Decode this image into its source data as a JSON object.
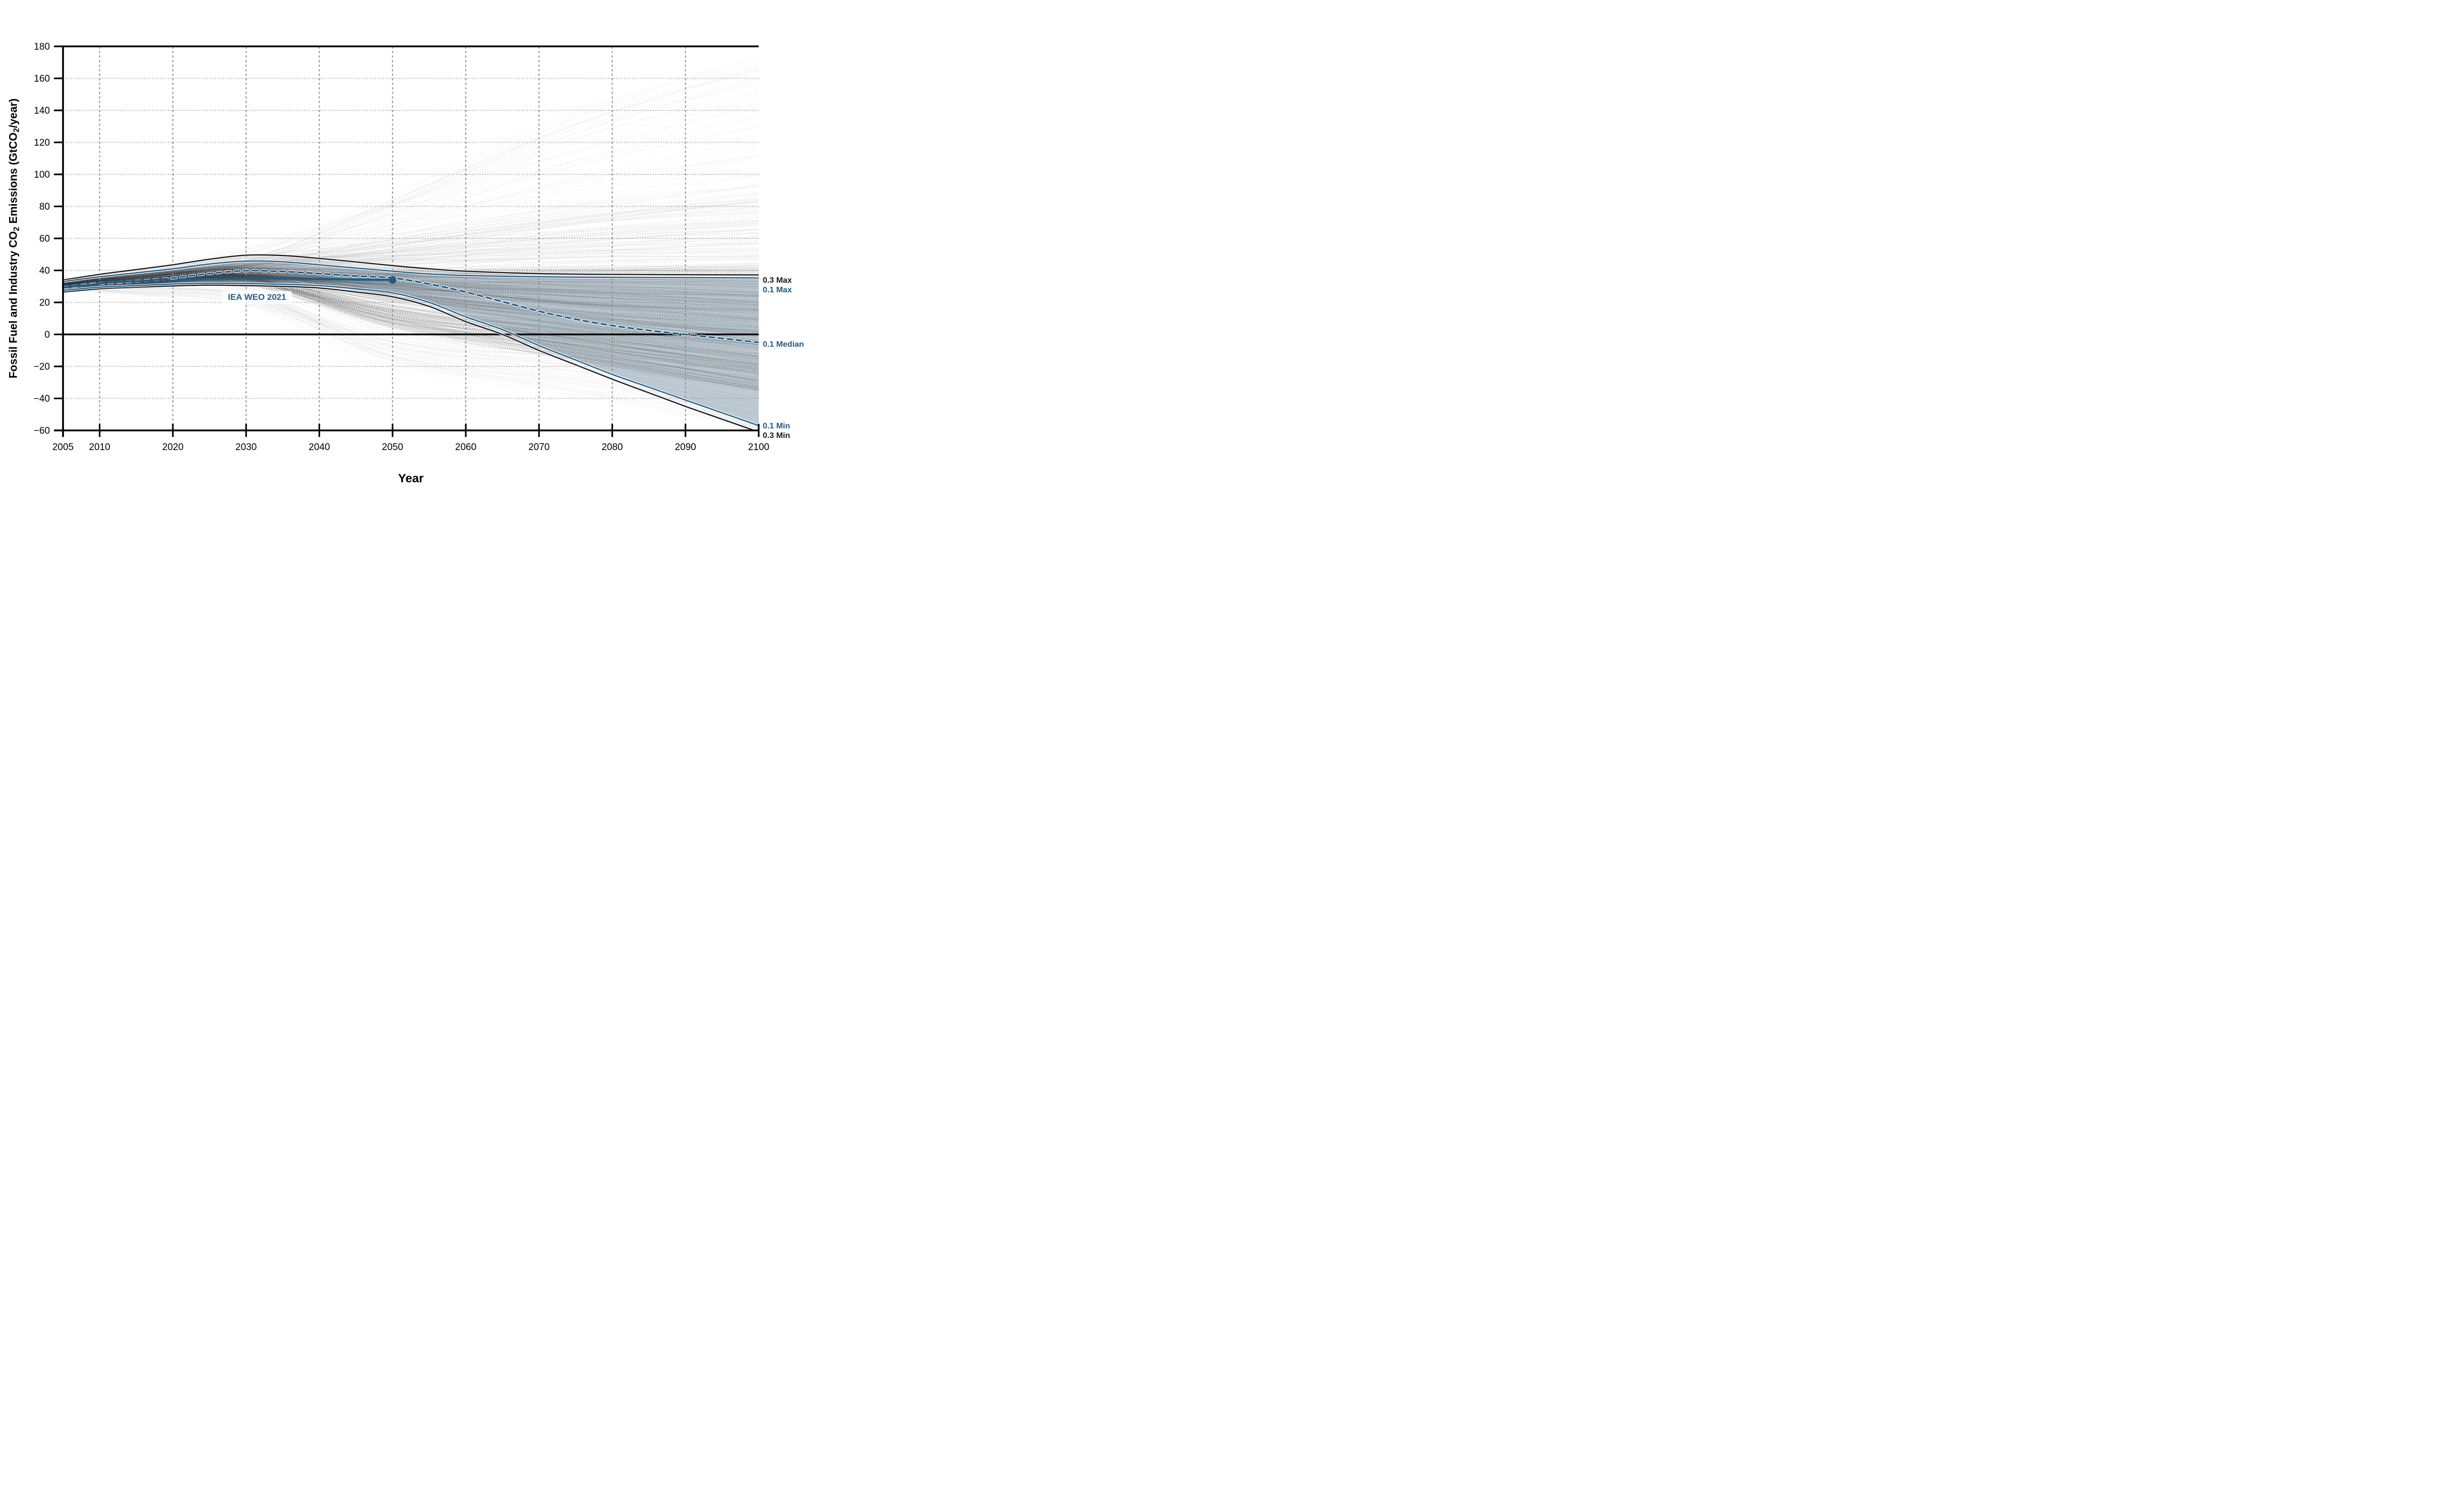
{
  "chart_data": {
    "type": "line",
    "title": "",
    "xlabel": "Year",
    "ylabel": "Fossil Fuel and Industry CO2 Emissions (GtCO2/year)",
    "ylabel_parts": [
      {
        "t": "Fossil Fuel and Industry CO"
      },
      {
        "t": "2",
        "sub": true
      },
      {
        "t": " Emissions (GtCO"
      },
      {
        "t": "2",
        "sub": true
      },
      {
        "t": "/year)"
      }
    ],
    "xlim": [
      2005,
      2100
    ],
    "ylim": [
      -60,
      180
    ],
    "grid": true,
    "x_ticks": [
      {
        "v": 2005,
        "label": "2005"
      },
      {
        "v": 2010,
        "label": "2010"
      },
      {
        "v": 2020,
        "label": "2020"
      },
      {
        "v": 2030,
        "label": "2030"
      },
      {
        "v": 2040,
        "label": "2040"
      },
      {
        "v": 2050,
        "label": "2050"
      },
      {
        "v": 2060,
        "label": "2060"
      },
      {
        "v": 2070,
        "label": "2070"
      },
      {
        "v": 2080,
        "label": "2080"
      },
      {
        "v": 2090,
        "label": "2090"
      },
      {
        "v": 2100,
        "label": "2100"
      }
    ],
    "y_ticks": [
      {
        "v": 180,
        "label": "180"
      },
      {
        "v": 160,
        "label": "160"
      },
      {
        "v": 140,
        "label": "140"
      },
      {
        "v": 120,
        "label": "120"
      },
      {
        "v": 100,
        "label": "100"
      },
      {
        "v": 80,
        "label": "80"
      },
      {
        "v": 60,
        "label": "60"
      },
      {
        "v": 40,
        "label": "40"
      },
      {
        "v": 20,
        "label": "20"
      },
      {
        "v": 0,
        "label": "0"
      },
      {
        "v": -20,
        "label": "−20"
      },
      {
        "v": -40,
        "label": "−40"
      },
      {
        "v": -60,
        "label": "−60"
      }
    ],
    "grid_x": [
      2010,
      2020,
      2030,
      2040,
      2050,
      2060,
      2070,
      2080,
      2090
    ],
    "grid_y": [
      -40,
      -20,
      20,
      40,
      60,
      80,
      100,
      120,
      140,
      160
    ],
    "colors": {
      "blue": "#1f5d88",
      "dark": "#1a1a1a",
      "band_01_fill": "rgba(93,127,153,0.35)",
      "band_03_fill": "rgba(110,110,110,0.08)",
      "zero_line": "#000000",
      "grid": "#8c8c8c"
    },
    "series": [
      {
        "name": "0.3 Max",
        "style": "envelope-dark",
        "points": [
          [
            2005,
            34
          ],
          [
            2010,
            37.5
          ],
          [
            2015,
            40.5
          ],
          [
            2020,
            43.5
          ],
          [
            2025,
            47
          ],
          [
            2030,
            49.5
          ],
          [
            2035,
            49.3
          ],
          [
            2040,
            47.5
          ],
          [
            2045,
            45.3
          ],
          [
            2050,
            43
          ],
          [
            2055,
            41
          ],
          [
            2060,
            39.5
          ],
          [
            2070,
            38
          ],
          [
            2080,
            37.5
          ],
          [
            2090,
            37.3
          ],
          [
            2100,
            37.2
          ]
        ]
      },
      {
        "name": "0.1 Max",
        "style": "envelope-blue",
        "points": [
          [
            2005,
            33
          ],
          [
            2010,
            36
          ],
          [
            2015,
            38.5
          ],
          [
            2020,
            41
          ],
          [
            2025,
            44
          ],
          [
            2030,
            45.8
          ],
          [
            2035,
            45.4
          ],
          [
            2040,
            43.5
          ],
          [
            2045,
            41.5
          ],
          [
            2050,
            39.5
          ],
          [
            2055,
            37.8
          ],
          [
            2060,
            36.8
          ],
          [
            2070,
            36
          ],
          [
            2080,
            35.7
          ],
          [
            2090,
            35.5
          ],
          [
            2100,
            35.3
          ]
        ]
      },
      {
        "name": "0.1 Median",
        "style": "median-dashed-blue",
        "points": [
          [
            2005,
            29.3
          ],
          [
            2010,
            31.8
          ],
          [
            2015,
            33.2
          ],
          [
            2018,
            34.3
          ],
          [
            2020,
            35.2
          ],
          [
            2025,
            38
          ],
          [
            2030,
            39.8
          ],
          [
            2035,
            39.3
          ],
          [
            2040,
            38
          ],
          [
            2045,
            36.5
          ],
          [
            2050,
            35.3
          ],
          [
            2055,
            31.5
          ],
          [
            2060,
            26.5
          ],
          [
            2065,
            20.5
          ],
          [
            2070,
            14.5
          ],
          [
            2075,
            9.5
          ],
          [
            2080,
            5.5
          ],
          [
            2085,
            2.5
          ],
          [
            2090,
            0
          ],
          [
            2095,
            -2.5
          ],
          [
            2100,
            -5
          ]
        ]
      },
      {
        "name": "0.1 Min",
        "style": "envelope-blue",
        "points": [
          [
            2005,
            27.5
          ],
          [
            2010,
            29.5
          ],
          [
            2015,
            30.5
          ],
          [
            2020,
            31.5
          ],
          [
            2025,
            32
          ],
          [
            2030,
            31.8
          ],
          [
            2035,
            31.3
          ],
          [
            2040,
            30.5
          ],
          [
            2045,
            28.5
          ],
          [
            2050,
            26
          ],
          [
            2055,
            20
          ],
          [
            2060,
            11
          ],
          [
            2065,
            3
          ],
          [
            2070,
            -7
          ],
          [
            2075,
            -16
          ],
          [
            2080,
            -25
          ],
          [
            2085,
            -33
          ],
          [
            2090,
            -41
          ],
          [
            2095,
            -49
          ],
          [
            2100,
            -57
          ]
        ]
      },
      {
        "name": "0.3 Min",
        "style": "envelope-dark",
        "points": [
          [
            2005,
            26.5
          ],
          [
            2010,
            28.5
          ],
          [
            2015,
            29.5
          ],
          [
            2020,
            30.3
          ],
          [
            2025,
            30.8
          ],
          [
            2030,
            30.5
          ],
          [
            2035,
            30
          ],
          [
            2040,
            29
          ],
          [
            2045,
            26.5
          ],
          [
            2050,
            23.5
          ],
          [
            2055,
            17.5
          ],
          [
            2060,
            8
          ],
          [
            2065,
            0
          ],
          [
            2070,
            -10
          ],
          [
            2075,
            -19
          ],
          [
            2080,
            -28
          ],
          [
            2085,
            -36.5
          ],
          [
            2090,
            -45
          ],
          [
            2095,
            -53
          ],
          [
            2100,
            -61
          ]
        ]
      },
      {
        "name": "IEA WEO 2021",
        "style": "thick-blue-with-end-dot",
        "points": [
          [
            2005,
            29.3
          ],
          [
            2007,
            30.4
          ],
          [
            2009,
            30.8
          ],
          [
            2010,
            31.8
          ],
          [
            2011,
            32.3
          ],
          [
            2013,
            32.9
          ],
          [
            2015,
            33.2
          ],
          [
            2017,
            33.8
          ],
          [
            2019,
            34.5
          ],
          [
            2020,
            33.2
          ],
          [
            2021,
            34.3
          ],
          [
            2023,
            34.5
          ],
          [
            2025,
            34.7
          ],
          [
            2030,
            35
          ],
          [
            2035,
            34.9
          ],
          [
            2040,
            34.6
          ],
          [
            2045,
            34.3
          ],
          [
            2050,
            34
          ]
        ],
        "end_dot": [
          2050,
          34
        ]
      }
    ],
    "bands": [
      {
        "name": "0.3 range",
        "upper": "0.3 Max",
        "lower": "0.3 Min",
        "fill": "band_03_fill"
      },
      {
        "name": "0.1 range",
        "upper": "0.1 Max",
        "lower": "0.1 Min",
        "fill": "band_01_fill"
      }
    ],
    "annotation": {
      "text": "IEA WEO 2021",
      "year": 2031.5,
      "value": 23.0
    },
    "right_labels": [
      {
        "text": "0.3 Max",
        "value": 33.5,
        "color": "dark"
      },
      {
        "text": "0.1 Max",
        "value": 27.5,
        "color": "blue"
      },
      {
        "text": "0.1 Median",
        "value": -6.5,
        "color": "blue"
      },
      {
        "text": "0.1 Min",
        "value": -57.5,
        "color": "blue"
      },
      {
        "text": "0.3 Min",
        "value": -63.5,
        "color": "dark"
      }
    ],
    "ensemble": {
      "seed": 42,
      "start_min": 27.5,
      "start_max": 34.0,
      "groups": [
        {
          "name": "very-high",
          "count": 55,
          "end_min": 95,
          "end_max": 175,
          "alpha_min": 0.04,
          "alpha_max": 0.09,
          "rise": 15,
          "spread": 10,
          "pull": 0.3,
          "color": "#1a1a1a"
        },
        {
          "name": "high",
          "count": 120,
          "end_min": 45,
          "end_max": 95,
          "alpha_min": 0.05,
          "alpha_max": 0.13,
          "rise": 10,
          "spread": 7,
          "pull": 0.33,
          "color": "#1a1a1a"
        },
        {
          "name": "mid",
          "count": 300,
          "end_min": -8,
          "end_max": 45,
          "alpha_min": 0.07,
          "alpha_max": 0.2,
          "rise": 6,
          "spread": 5,
          "pull": 0.35,
          "color": "#1a1a1a"
        },
        {
          "name": "low",
          "count": 160,
          "end_min": -35,
          "end_max": -5,
          "alpha_min": 0.07,
          "alpha_max": 0.22,
          "rise": 3,
          "spread": 4,
          "pull": 0.42,
          "color": "#222222"
        },
        {
          "name": "very-low",
          "count": 85,
          "end_min": -60,
          "end_max": -28,
          "alpha_min": 0.04,
          "alpha_max": 0.1,
          "rise": -5,
          "spread": -8,
          "pull": 0.5,
          "color": "#666666"
        }
      ]
    }
  }
}
